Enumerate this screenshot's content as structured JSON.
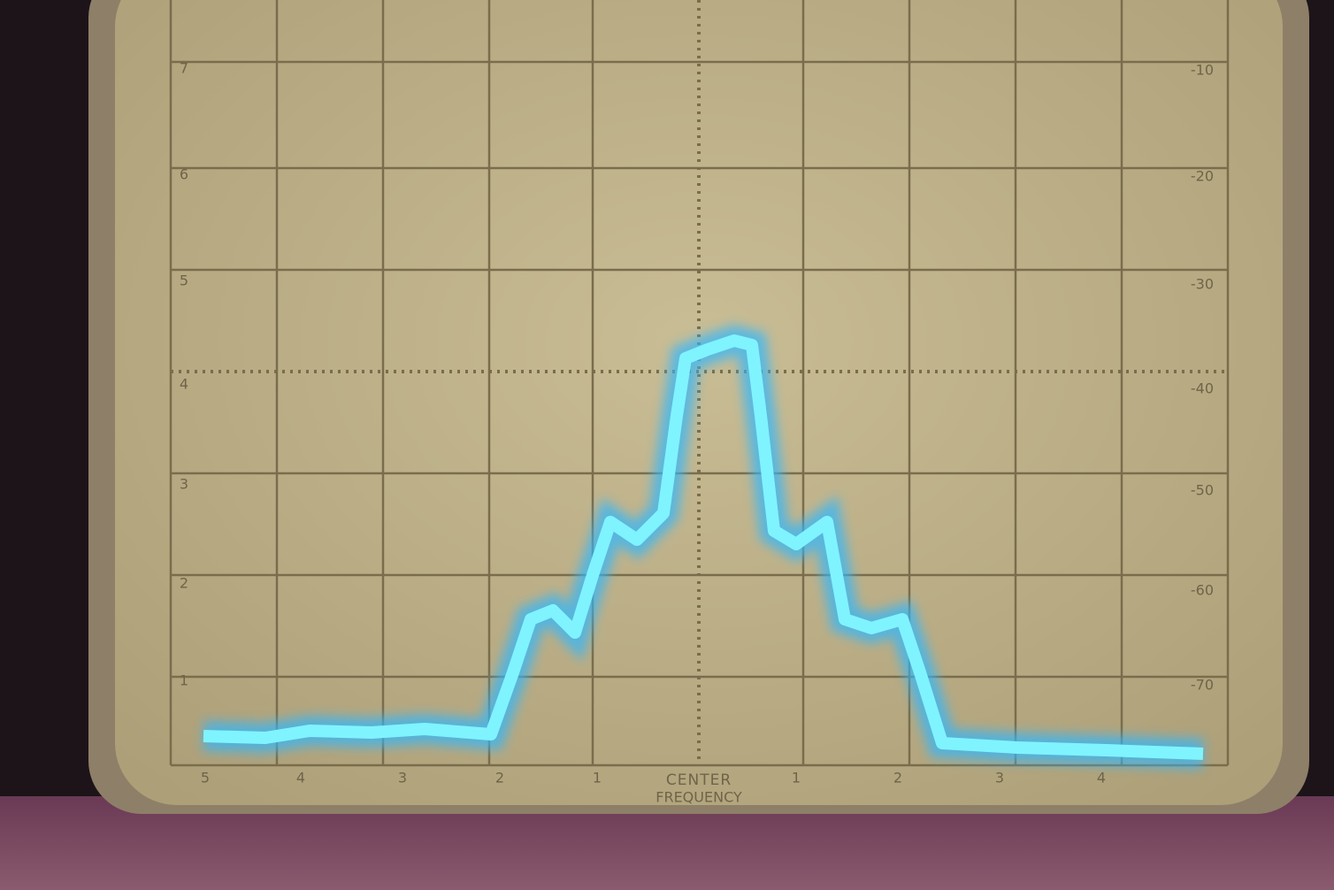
{
  "screen": {
    "left_labels": [
      "7",
      "6",
      "5",
      "4",
      "3",
      "2",
      "1"
    ],
    "right_labels": [
      "-10",
      "-20",
      "-30",
      "-40",
      "-50",
      "-60",
      "-70"
    ],
    "bottom_labels": [
      "5",
      "4",
      "3",
      "2",
      "1",
      "1",
      "2",
      "3",
      "4"
    ],
    "center_label": "CENTER",
    "center_sublabel": "FREQUENCY"
  }
}
